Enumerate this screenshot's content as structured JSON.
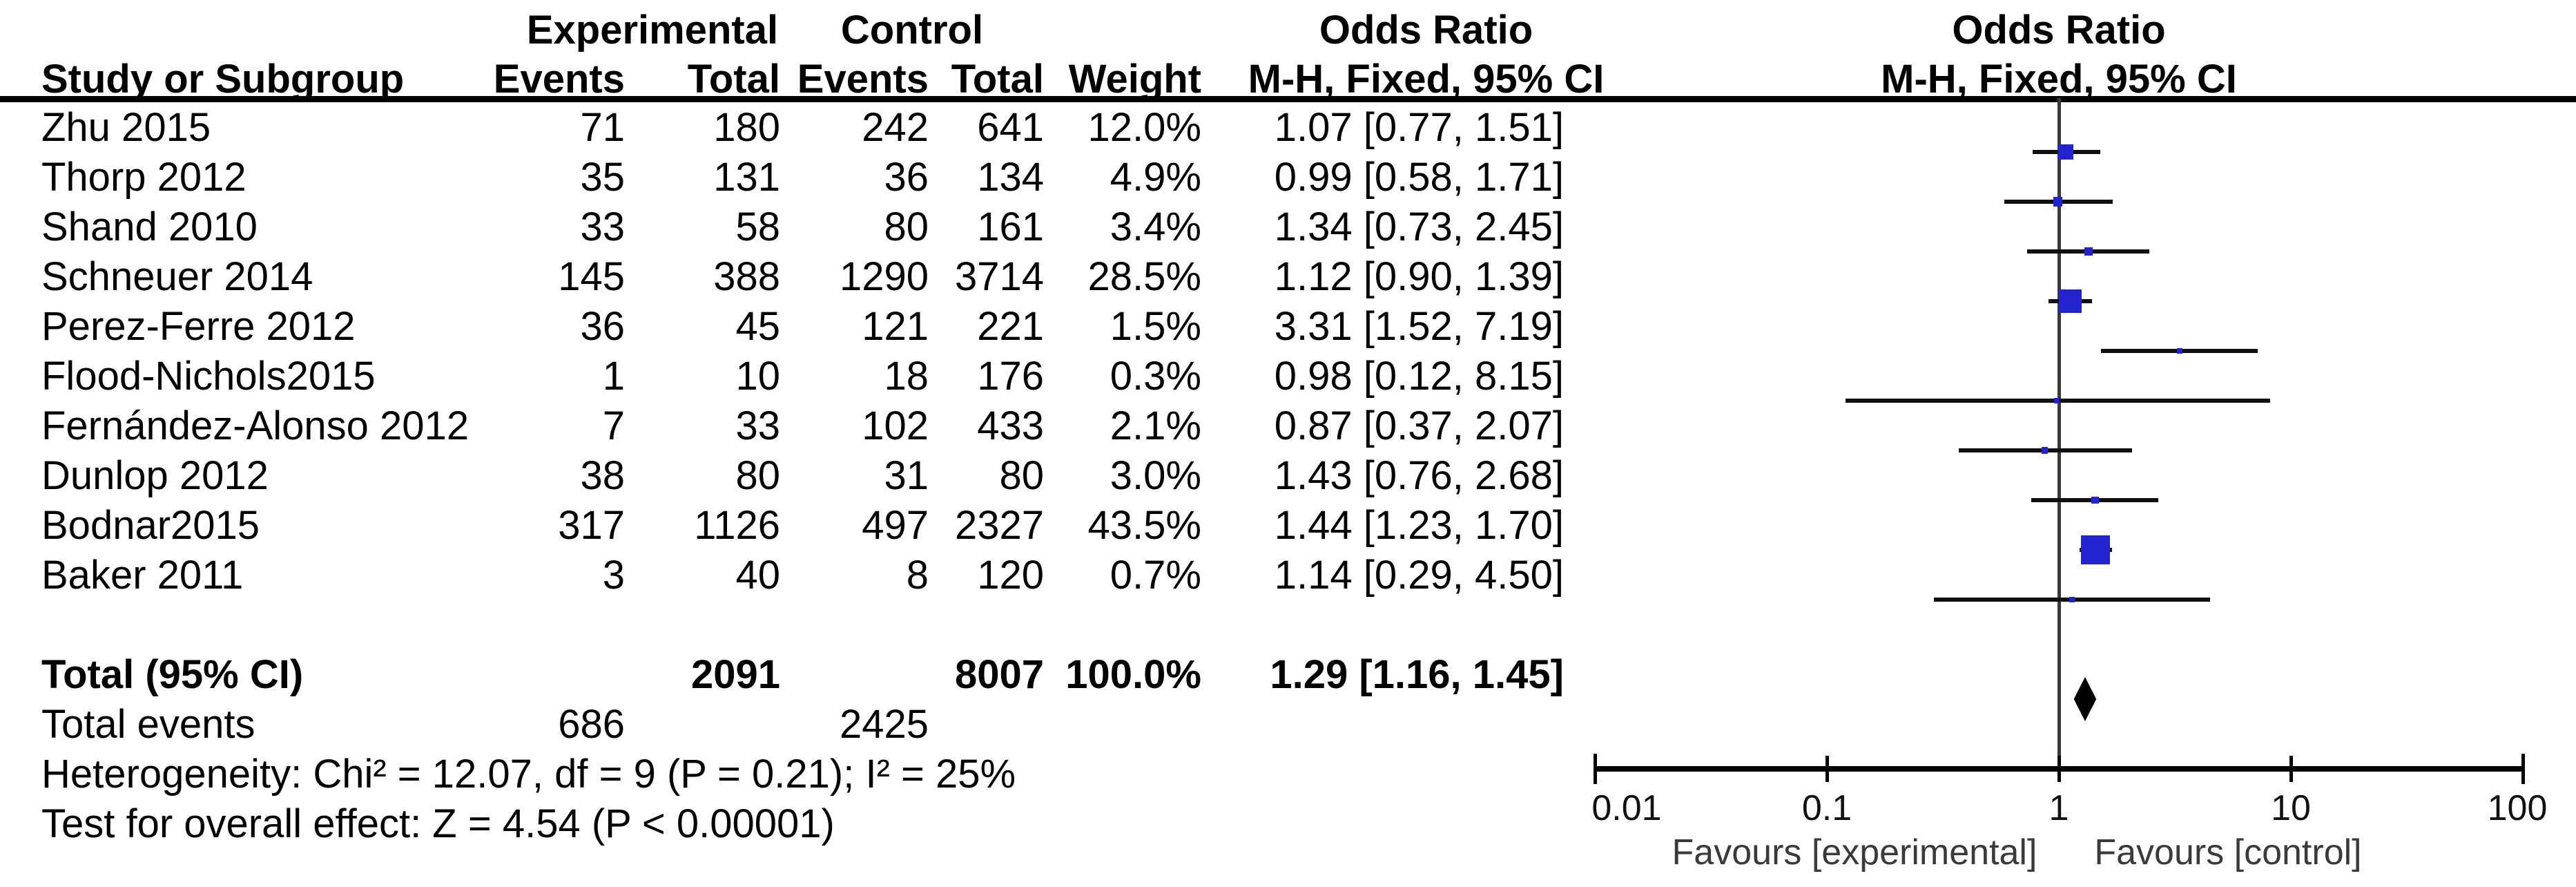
{
  "header": {
    "group_experimental": "Experimental",
    "group_control": "Control",
    "or_text_title": "Odds Ratio",
    "or_plot_title": "Odds Ratio",
    "study_col": "Study or Subgroup",
    "events_col": "Events",
    "total_col": "Total",
    "events2_col": "Events",
    "total2_col": "Total",
    "weight_col": "Weight",
    "method_text_col": "M-H, Fixed, 95% CI",
    "method_plot_col": "M-H, Fixed, 95% CI"
  },
  "chart_data": {
    "type": "forest",
    "effect_measure": "Odds Ratio",
    "method": "M-H, Fixed, 95% CI",
    "marker_color": "#2222CE",
    "axis": {
      "scale": "log",
      "min": 0.01,
      "max": 100,
      "ticks": [
        0.01,
        0.1,
        1,
        10,
        100
      ],
      "tick_labels": [
        "0.01",
        "0.1",
        "1",
        "10",
        "100"
      ],
      "left_label": "Favours [experimental]",
      "right_label": "Favours [control]"
    },
    "studies": [
      {
        "label": "Zhu 2015",
        "exp_events": "71",
        "exp_total": "180",
        "ctrl_events": "242",
        "ctrl_total": "641",
        "weight": "12.0%",
        "weight_value": 12.0,
        "or": 1.07,
        "ci_low": 0.77,
        "ci_high": 1.51,
        "or_text": "1.07 [0.77, 1.51]"
      },
      {
        "label": "Thorp 2012",
        "exp_events": "35",
        "exp_total": "131",
        "ctrl_events": "36",
        "ctrl_total": "134",
        "weight": "4.9%",
        "weight_value": 4.9,
        "or": 0.99,
        "ci_low": 0.58,
        "ci_high": 1.71,
        "or_text": "0.99 [0.58, 1.71]"
      },
      {
        "label": "Shand 2010",
        "exp_events": "33",
        "exp_total": "58",
        "ctrl_events": "80",
        "ctrl_total": "161",
        "weight": "3.4%",
        "weight_value": 3.4,
        "or": 1.34,
        "ci_low": 0.73,
        "ci_high": 2.45,
        "or_text": "1.34 [0.73, 2.45]"
      },
      {
        "label": "Schneuer 2014",
        "exp_events": "145",
        "exp_total": "388",
        "ctrl_events": "1290",
        "ctrl_total": "3714",
        "weight": "28.5%",
        "weight_value": 28.5,
        "or": 1.12,
        "ci_low": 0.9,
        "ci_high": 1.39,
        "or_text": "1.12 [0.90, 1.39]"
      },
      {
        "label": "Perez-Ferre 2012",
        "exp_events": "36",
        "exp_total": "45",
        "ctrl_events": "121",
        "ctrl_total": "221",
        "weight": "1.5%",
        "weight_value": 1.5,
        "or": 3.31,
        "ci_low": 1.52,
        "ci_high": 7.19,
        "or_text": "3.31 [1.52, 7.19]"
      },
      {
        "label": "Flood-Nichols2015",
        "exp_events": "1",
        "exp_total": "10",
        "ctrl_events": "18",
        "ctrl_total": "176",
        "weight": "0.3%",
        "weight_value": 0.3,
        "or": 0.98,
        "ci_low": 0.12,
        "ci_high": 8.15,
        "or_text": "0.98 [0.12, 8.15]"
      },
      {
        "label": "Fernández-Alonso 2012",
        "exp_events": "7",
        "exp_total": "33",
        "ctrl_events": "102",
        "ctrl_total": "433",
        "weight": "2.1%",
        "weight_value": 2.1,
        "or": 0.87,
        "ci_low": 0.37,
        "ci_high": 2.07,
        "or_text": "0.87 [0.37, 2.07]"
      },
      {
        "label": "Dunlop 2012",
        "exp_events": "38",
        "exp_total": "80",
        "ctrl_events": "31",
        "ctrl_total": "80",
        "weight": "3.0%",
        "weight_value": 3.0,
        "or": 1.43,
        "ci_low": 0.76,
        "ci_high": 2.68,
        "or_text": "1.43 [0.76, 2.68]"
      },
      {
        "label": "Bodnar2015",
        "exp_events": "317",
        "exp_total": "1126",
        "ctrl_events": "497",
        "ctrl_total": "2327",
        "weight": "43.5%",
        "weight_value": 43.5,
        "or": 1.44,
        "ci_low": 1.23,
        "ci_high": 1.7,
        "or_text": "1.44 [1.23, 1.70]"
      },
      {
        "label": "Baker 2011",
        "exp_events": "3",
        "exp_total": "40",
        "ctrl_events": "8",
        "ctrl_total": "120",
        "weight": "0.7%",
        "weight_value": 0.7,
        "or": 1.14,
        "ci_low": 0.29,
        "ci_high": 4.5,
        "or_text": "1.14 [0.29, 4.50]"
      }
    ],
    "total": {
      "label": "Total (95% CI)",
      "exp_total": "2091",
      "ctrl_total": "8007",
      "weight": "100.0%",
      "or": 1.29,
      "ci_low": 1.16,
      "ci_high": 1.45,
      "or_text": "1.29 [1.16, 1.45]"
    },
    "total_events": {
      "label": "Total events",
      "exp": "686",
      "ctrl": "2425"
    },
    "footnotes": {
      "heterogeneity": "Heterogeneity: Chi² = 12.07, df = 9 (P = 0.21); I² = 25%",
      "overall_effect": "Test for overall effect: Z = 4.54 (P < 0.00001)"
    }
  }
}
